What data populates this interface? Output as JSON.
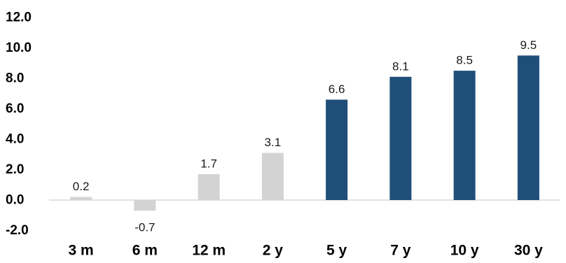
{
  "chart_data": {
    "type": "bar",
    "title": "",
    "xlabel": "",
    "ylabel": "",
    "categories": [
      "3 m",
      "6 m",
      "12 m",
      "2 y",
      "5 y",
      "7 y",
      "10 y",
      "30 y"
    ],
    "values": [
      0.2,
      -0.7,
      1.7,
      3.1,
      6.6,
      8.1,
      8.5,
      9.5
    ],
    "data_labels": [
      "0.2",
      "-0.7",
      "1.7",
      "3.1",
      "6.6",
      "8.1",
      "8.5",
      "9.5"
    ],
    "yticks": [
      "12.0",
      "10.0",
      "8.0",
      "6.0",
      "4.0",
      "2.0",
      "0.0",
      "-2.0"
    ],
    "ytick_values": [
      12,
      10,
      8,
      6,
      4,
      2,
      0,
      -2
    ],
    "ylim": [
      -2,
      12
    ],
    "grid": false,
    "legend": "none",
    "bar_colors": [
      "#d3d3d3",
      "#d3d3d3",
      "#d3d3d3",
      "#d3d3d3",
      "#1f4e79",
      "#1f4e79",
      "#1f4e79",
      "#1f4e79"
    ],
    "baseline_color": "#d9d9d9"
  }
}
